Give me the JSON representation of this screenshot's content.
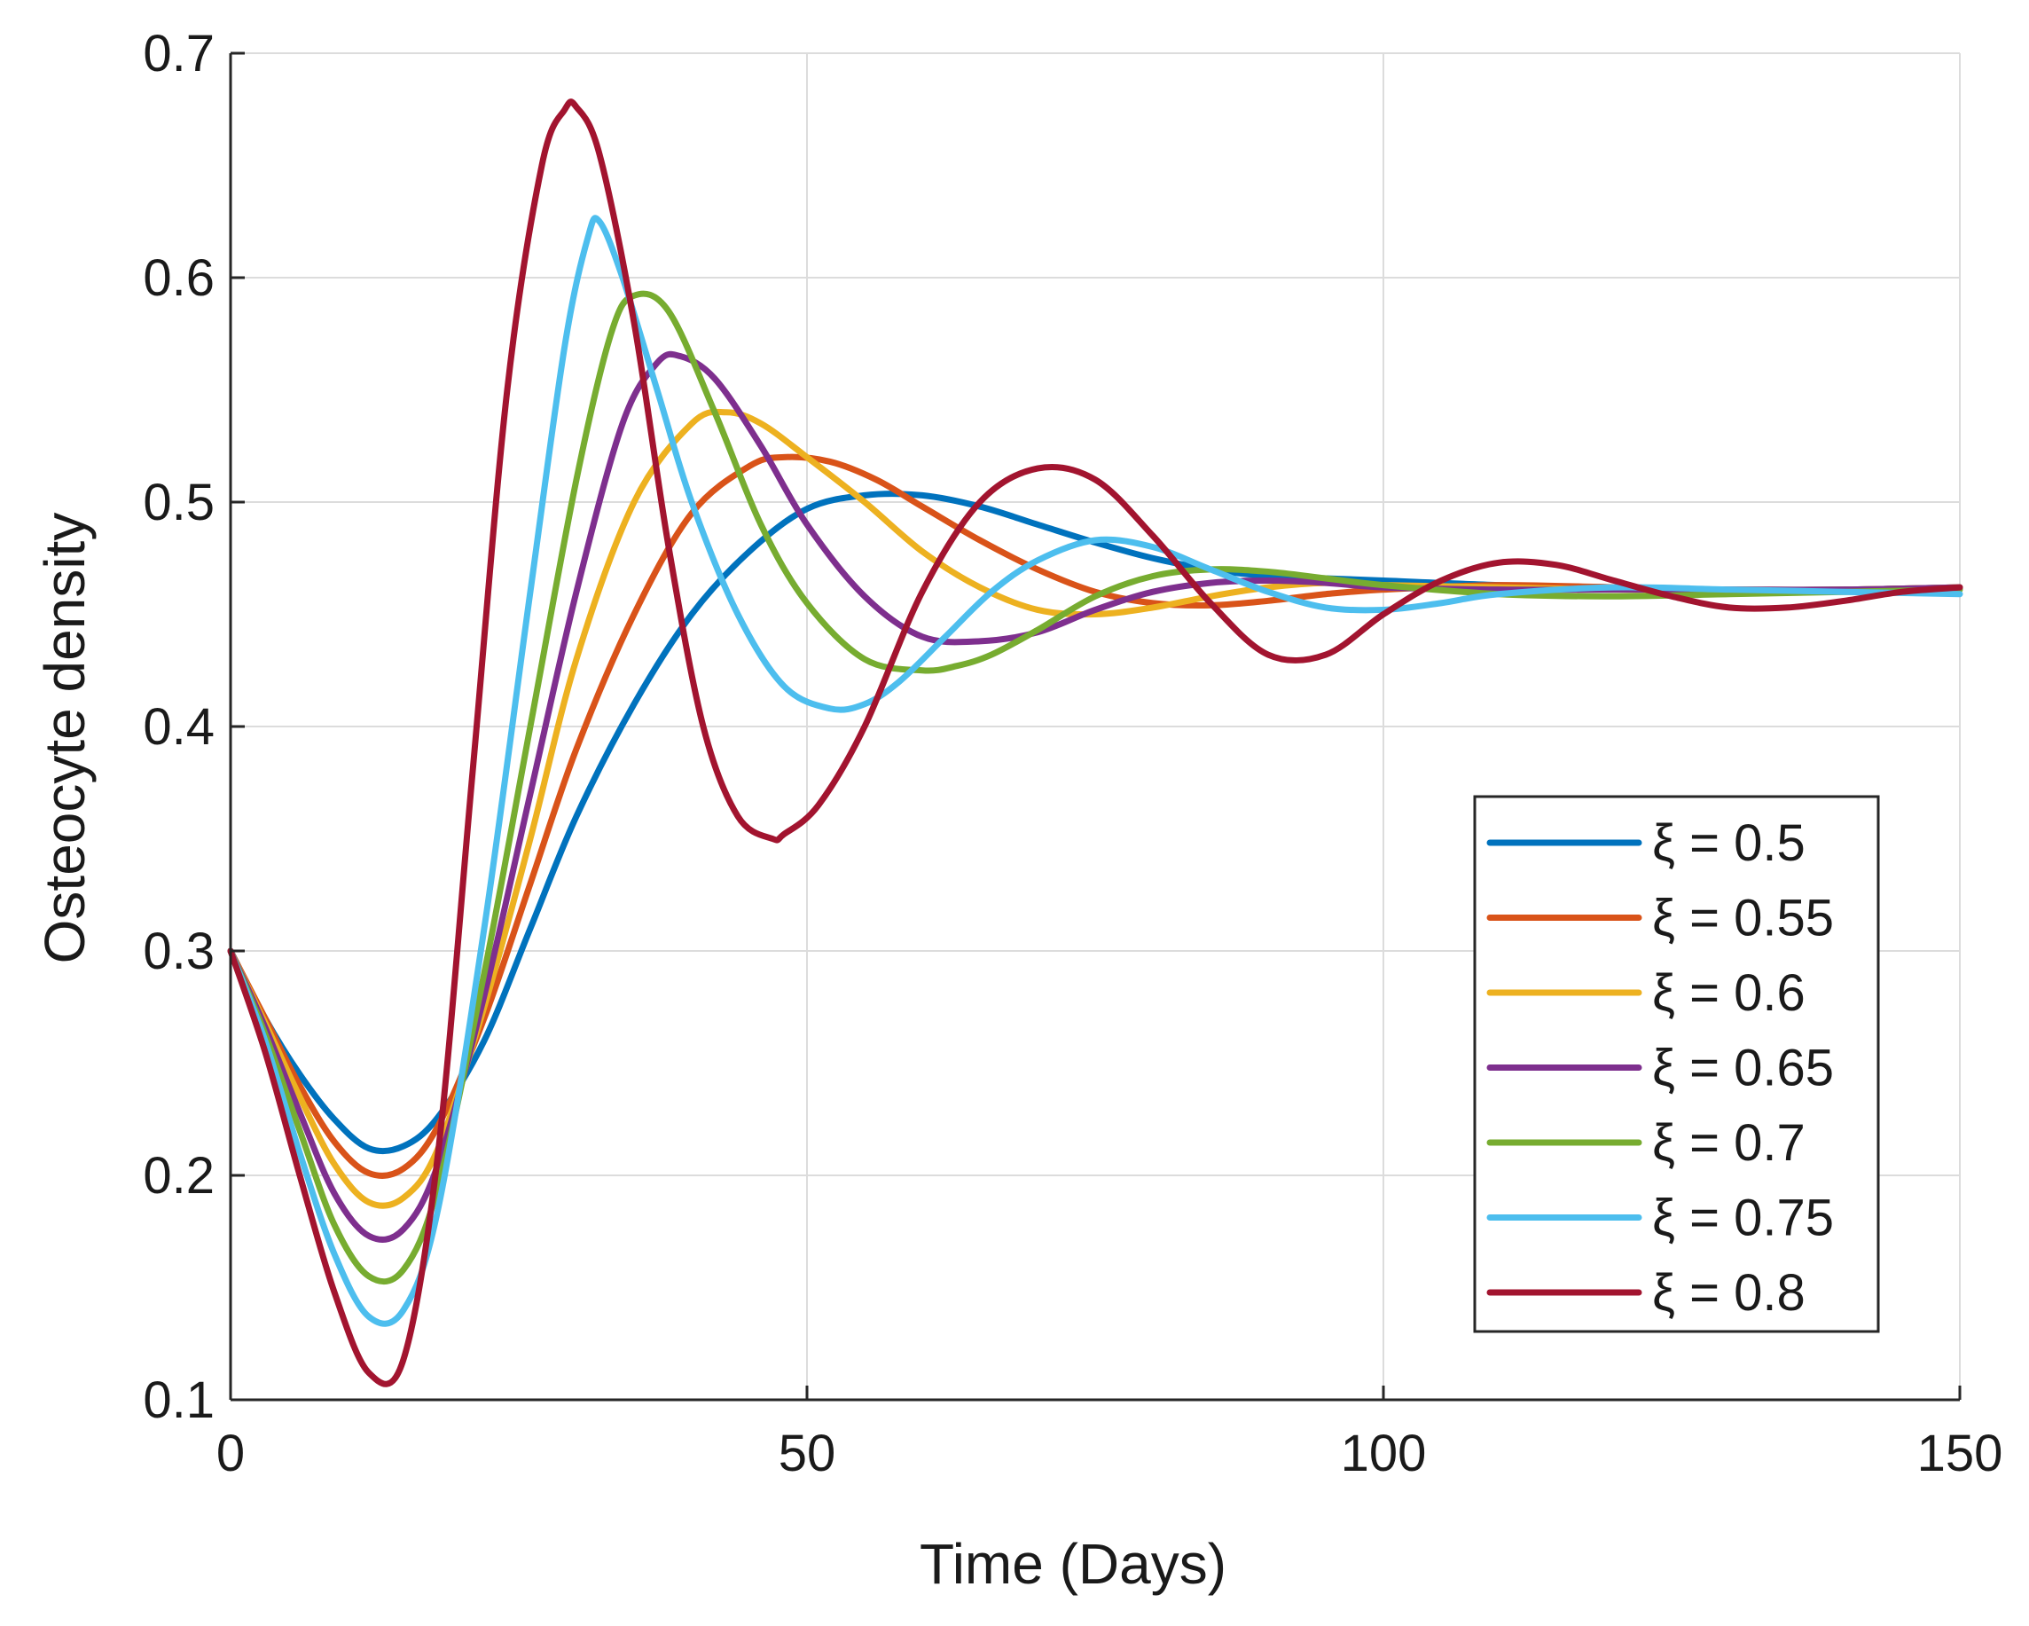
{
  "chart_data": {
    "type": "line",
    "title": "",
    "xlabel": "Time (Days)",
    "ylabel": "Osteocyte density",
    "xlim": [
      0,
      150
    ],
    "ylim": [
      0.1,
      0.7
    ],
    "xticks": [
      0,
      50,
      100,
      150
    ],
    "xtick_labels": [
      "0",
      "50",
      "100",
      "150"
    ],
    "yticks": [
      0.1,
      0.2,
      0.3,
      0.4,
      0.5,
      0.6,
      0.7
    ],
    "ytick_labels": [
      "0.1",
      "0.2",
      "0.3",
      "0.4",
      "0.5",
      "0.6",
      "0.7"
    ],
    "grid": true,
    "legend_position": "lower-right",
    "series": [
      {
        "name": "ξ = 0.5",
        "color": "#0072BD",
        "x": [
          0,
          3,
          6,
          9,
          12,
          15,
          18,
          22,
          26,
          30,
          35,
          40,
          45,
          50,
          55,
          60,
          65,
          70,
          75,
          80,
          85,
          90,
          95,
          100,
          110,
          120,
          130,
          140,
          150
        ],
        "y": [
          0.3,
          0.27,
          0.245,
          0.225,
          0.212,
          0.213,
          0.226,
          0.26,
          0.31,
          0.36,
          0.41,
          0.45,
          0.478,
          0.497,
          0.503,
          0.503,
          0.498,
          0.49,
          0.482,
          0.475,
          0.47,
          0.467,
          0.466,
          0.465,
          0.463,
          0.462,
          0.461,
          0.461,
          0.462
        ]
      },
      {
        "name": "ξ = 0.55",
        "color": "#D95319",
        "x": [
          0,
          3,
          6,
          9,
          12,
          15,
          18,
          22,
          26,
          30,
          35,
          40,
          45,
          48,
          52,
          56,
          60,
          65,
          70,
          75,
          80,
          85,
          90,
          95,
          100,
          110,
          120,
          130,
          140,
          150
        ],
        "y": [
          0.3,
          0.27,
          0.24,
          0.215,
          0.201,
          0.203,
          0.222,
          0.27,
          0.33,
          0.39,
          0.45,
          0.495,
          0.516,
          0.52,
          0.518,
          0.51,
          0.498,
          0.483,
          0.47,
          0.46,
          0.455,
          0.454,
          0.456,
          0.459,
          0.461,
          0.463,
          0.462,
          0.461,
          0.461,
          0.462
        ]
      },
      {
        "name": "ξ = 0.6",
        "color": "#EDB120",
        "x": [
          0,
          3,
          6,
          9,
          12,
          15,
          18,
          22,
          26,
          30,
          35,
          40,
          43,
          46,
          50,
          55,
          60,
          65,
          70,
          75,
          80,
          85,
          90,
          95,
          100,
          110,
          120,
          130,
          140,
          150
        ],
        "y": [
          0.3,
          0.268,
          0.235,
          0.205,
          0.188,
          0.19,
          0.212,
          0.275,
          0.35,
          0.43,
          0.5,
          0.535,
          0.54,
          0.535,
          0.52,
          0.5,
          0.478,
          0.462,
          0.452,
          0.45,
          0.453,
          0.458,
          0.462,
          0.464,
          0.463,
          0.462,
          0.461,
          0.461,
          0.461,
          0.462
        ]
      },
      {
        "name": "ξ = 0.65",
        "color": "#7E2F8E",
        "x": [
          0,
          3,
          6,
          9,
          12,
          15,
          18,
          22,
          26,
          30,
          34,
          37,
          39,
          42,
          46,
          50,
          55,
          60,
          65,
          70,
          75,
          80,
          85,
          90,
          95,
          100,
          110,
          120,
          130,
          140,
          150
        ],
        "y": [
          0.3,
          0.266,
          0.228,
          0.192,
          0.173,
          0.176,
          0.205,
          0.28,
          0.37,
          0.46,
          0.535,
          0.562,
          0.565,
          0.555,
          0.525,
          0.49,
          0.458,
          0.44,
          0.438,
          0.442,
          0.452,
          0.46,
          0.464,
          0.465,
          0.464,
          0.462,
          0.461,
          0.461,
          0.461,
          0.461,
          0.462
        ]
      },
      {
        "name": "ξ = 0.7",
        "color": "#77AC30",
        "x": [
          0,
          3,
          6,
          9,
          12,
          15,
          18,
          22,
          26,
          30,
          33,
          35,
          38,
          42,
          46,
          50,
          55,
          60,
          63,
          66,
          70,
          75,
          80,
          85,
          90,
          95,
          100,
          110,
          120,
          130,
          140,
          150
        ],
        "y": [
          0.3,
          0.263,
          0.22,
          0.178,
          0.155,
          0.158,
          0.195,
          0.29,
          0.4,
          0.51,
          0.575,
          0.592,
          0.585,
          0.54,
          0.49,
          0.455,
          0.43,
          0.425,
          0.427,
          0.432,
          0.443,
          0.458,
          0.467,
          0.47,
          0.469,
          0.466,
          0.463,
          0.459,
          0.458,
          0.459,
          0.46,
          0.461
        ]
      },
      {
        "name": "ξ = 0.75",
        "color": "#4DBEEE",
        "x": [
          0,
          3,
          6,
          9,
          12,
          15,
          18,
          22,
          26,
          29,
          31,
          32,
          34,
          37,
          40,
          44,
          48,
          52,
          55,
          58,
          62,
          66,
          70,
          75,
          80,
          85,
          90,
          95,
          100,
          105,
          110,
          120,
          130,
          140,
          150
        ],
        "y": [
          0.3,
          0.26,
          0.21,
          0.165,
          0.137,
          0.14,
          0.185,
          0.31,
          0.46,
          0.57,
          0.618,
          0.625,
          0.6,
          0.55,
          0.5,
          0.45,
          0.418,
          0.408,
          0.41,
          0.42,
          0.44,
          0.46,
          0.474,
          0.483,
          0.48,
          0.47,
          0.46,
          0.453,
          0.452,
          0.455,
          0.459,
          0.462,
          0.461,
          0.46,
          0.459
        ]
      },
      {
        "name": "ξ = 0.8",
        "color": "#A2142F",
        "x": [
          0,
          3,
          6,
          9,
          12,
          15,
          18,
          21,
          24,
          27,
          29,
          30,
          32,
          35,
          38,
          41,
          44,
          47,
          48,
          51,
          55,
          60,
          65,
          70,
          75,
          80,
          85,
          90,
          95,
          100,
          105,
          110,
          115,
          120,
          125,
          130,
          135,
          140,
          145,
          150
        ],
        "y": [
          0.3,
          0.255,
          0.2,
          0.148,
          0.112,
          0.118,
          0.21,
          0.38,
          0.55,
          0.65,
          0.675,
          0.676,
          0.655,
          0.58,
          0.48,
          0.4,
          0.36,
          0.35,
          0.352,
          0.365,
          0.4,
          0.46,
          0.5,
          0.515,
          0.51,
          0.485,
          0.455,
          0.432,
          0.432,
          0.45,
          0.465,
          0.473,
          0.472,
          0.465,
          0.458,
          0.453,
          0.453,
          0.456,
          0.46,
          0.462
        ]
      }
    ]
  }
}
